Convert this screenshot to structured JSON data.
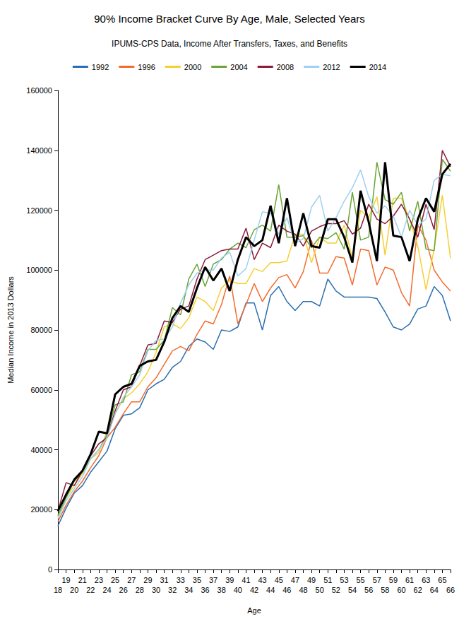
{
  "chart_data": {
    "type": "line",
    "title": "90% Income Bracket Curve By Age, Male, Selected Years",
    "subtitle": "IPUMS-CPS Data, Income After Transfers, Taxes, and Benefits",
    "x_label": "Age",
    "y_label": "Median Income in 2013 Dollars",
    "categories": [
      18,
      19,
      20,
      21,
      22,
      23,
      24,
      25,
      26,
      27,
      28,
      29,
      30,
      31,
      32,
      33,
      34,
      35,
      36,
      37,
      38,
      39,
      40,
      41,
      42,
      43,
      44,
      45,
      46,
      47,
      48,
      49,
      50,
      51,
      52,
      53,
      54,
      55,
      56,
      57,
      58,
      59,
      60,
      61,
      62,
      63,
      64,
      65,
      66
    ],
    "ylim": [
      0,
      160000
    ],
    "yticks": [
      0,
      20000,
      40000,
      60000,
      80000,
      100000,
      120000,
      140000,
      160000
    ],
    "grid": false,
    "legend": "top",
    "series": [
      {
        "name": "1992",
        "color": "#2a6fb0",
        "values": [
          14500,
          20500,
          25500,
          28000,
          32500,
          36000,
          39500,
          47000,
          51500,
          52000,
          54000,
          60000,
          62000,
          63500,
          67500,
          69500,
          74500,
          77000,
          76000,
          73500,
          80000,
          79500,
          81000,
          89000,
          89000,
          80000,
          91500,
          94500,
          89500,
          86500,
          89500,
          89500,
          88000,
          97000,
          93000,
          91000,
          91000,
          91000,
          91000,
          90500,
          86000,
          81000,
          80000,
          82000,
          87000,
          88000,
          94500,
          91500,
          83000
        ]
      },
      {
        "name": "1996",
        "color": "#f26c2e",
        "values": [
          16000,
          21500,
          26000,
          29500,
          34000,
          38000,
          44000,
          47500,
          52000,
          56000,
          56000,
          61000,
          64000,
          68500,
          73000,
          74500,
          73000,
          78500,
          83000,
          82000,
          88500,
          98000,
          82000,
          88500,
          95500,
          89500,
          94000,
          97500,
          98500,
          94000,
          99500,
          110000,
          99000,
          99000,
          104500,
          104000,
          95000,
          107000,
          106500,
          95000,
          101000,
          100000,
          92500,
          88000,
          115000,
          110000,
          100000,
          96000,
          93000
        ]
      },
      {
        "name": "2000",
        "color": "#f5d033",
        "values": [
          17500,
          24000,
          28000,
          32000,
          37000,
          39000,
          46000,
          52000,
          57000,
          59000,
          62000,
          66000,
          72500,
          81000,
          82000,
          80500,
          84000,
          91000,
          89500,
          86500,
          94000,
          96500,
          95500,
          95500,
          100500,
          99500,
          102500,
          102500,
          103000,
          112000,
          112000,
          102500,
          111000,
          109000,
          109000,
          115000,
          104000,
          120000,
          117500,
          124500,
          105000,
          124000,
          124000,
          117000,
          108000,
          93500,
          107000,
          125000,
          104000
        ]
      },
      {
        "name": "2004",
        "color": "#6aa536",
        "values": [
          18000,
          24000,
          29500,
          32500,
          37000,
          40000,
          45000,
          55000,
          56000,
          65000,
          66000,
          73500,
          73500,
          76500,
          87500,
          85000,
          97000,
          102000,
          94500,
          102000,
          103500,
          107000,
          109000,
          107500,
          113500,
          115000,
          113000,
          128500,
          111000,
          111000,
          111500,
          107500,
          111000,
          110500,
          112500,
          107000,
          126000,
          110000,
          111000,
          136000,
          123500,
          122000,
          126000,
          113000,
          123000,
          107000,
          106500,
          137000,
          133000
        ]
      },
      {
        "name": "2008",
        "color": "#8b1a3a",
        "values": [
          19500,
          29000,
          28000,
          33000,
          38000,
          42000,
          44000,
          53000,
          60000,
          61000,
          68000,
          75000,
          75500,
          83000,
          82500,
          87000,
          88000,
          97000,
          103500,
          105000,
          106500,
          107000,
          107000,
          114000,
          103500,
          109000,
          107500,
          115000,
          113000,
          112000,
          108000,
          113000,
          114500,
          115500,
          115500,
          116500,
          112000,
          114000,
          122000,
          117000,
          115500,
          118000,
          122000,
          117000,
          111000,
          122000,
          113500,
          140000,
          134500
        ]
      },
      {
        "name": "2012",
        "color": "#9fd0ef",
        "values": [
          17000,
          23000,
          27000,
          31000,
          37000,
          40000,
          44000,
          52000,
          57500,
          61000,
          65000,
          73000,
          76500,
          77000,
          81000,
          89000,
          95000,
          99000,
          100000,
          100000,
          104000,
          106000,
          98000,
          100500,
          110000,
          119500,
          119000,
          112000,
          117500,
          109000,
          110500,
          121000,
          125000,
          113000,
          117500,
          123000,
          127500,
          133500,
          124500,
          119000,
          121500,
          118000,
          111000,
          120000,
          115000,
          117000,
          130000,
          132000,
          131500
        ]
      },
      {
        "name": "2014",
        "color": "#000000",
        "values": [
          19500,
          25000,
          30000,
          33000,
          38500,
          46000,
          45500,
          58500,
          61000,
          62000,
          68000,
          69500,
          70000,
          76000,
          84000,
          88000,
          86000,
          94000,
          101000,
          96500,
          100500,
          93000,
          103500,
          111000,
          108000,
          110000,
          121500,
          109000,
          124000,
          108000,
          119000,
          108000,
          107500,
          117000,
          117000,
          111000,
          102500,
          126500,
          116000,
          103000,
          136000,
          111500,
          111000,
          103000,
          117000,
          124000,
          119500,
          132000,
          135500
        ]
      }
    ]
  }
}
